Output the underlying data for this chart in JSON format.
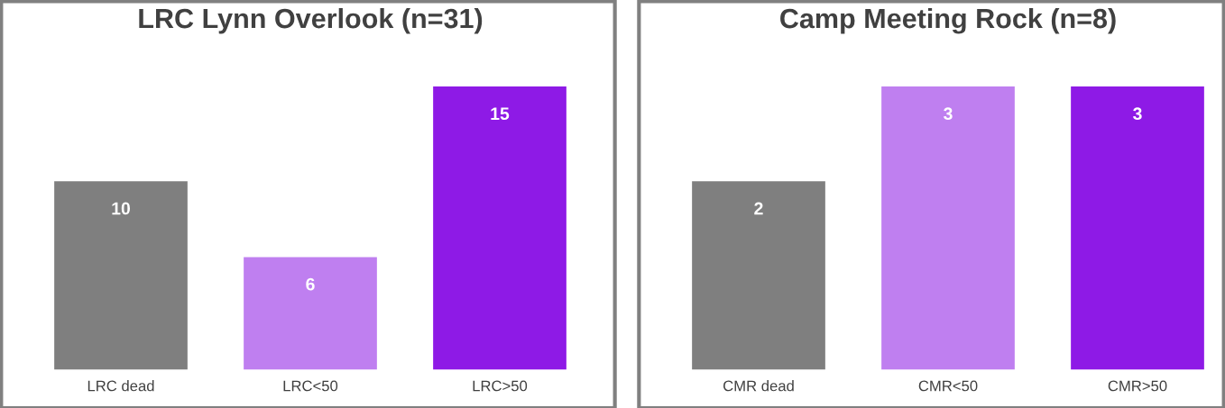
{
  "chart_data": [
    {
      "type": "bar",
      "title": "LRC Lynn Overlook (n=31)",
      "categories": [
        "LRC dead",
        "LRC<50",
        "LRC>50"
      ],
      "values": [
        10,
        6,
        15
      ],
      "colors": [
        "#7f7f7f",
        "#bf7ff0",
        "#8e1ae6"
      ],
      "data_labels": true,
      "grid": false,
      "legend": false,
      "tick_labels": "x"
    },
    {
      "type": "bar",
      "title": "Camp Meeting Rock (n=8)",
      "categories": [
        "CMR dead",
        "CMR<50",
        "CMR>50"
      ],
      "values": [
        2,
        3,
        3
      ],
      "colors": [
        "#7f7f7f",
        "#bf7ff0",
        "#8e1ae6"
      ],
      "data_labels": true,
      "grid": false,
      "legend": false,
      "tick_labels": "x"
    }
  ]
}
